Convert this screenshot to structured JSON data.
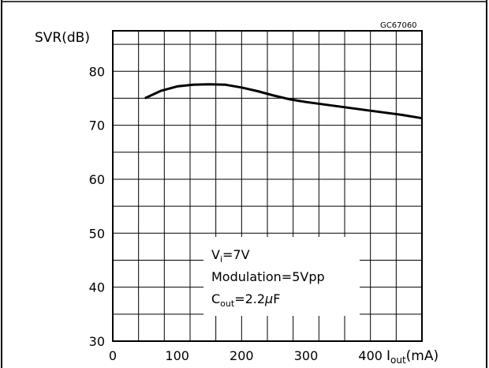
{
  "chart_data": {
    "type": "line",
    "figure_id": "GC67060",
    "ylabel": "SVR(dB)",
    "xlabel": {
      "main": "I",
      "sub": "out",
      "unit": "(mA)"
    },
    "xlim": [
      0,
      480
    ],
    "ylim": [
      30,
      87.5
    ],
    "x_ticks": [
      0,
      100,
      200,
      300,
      400
    ],
    "y_ticks": [
      30,
      40,
      50,
      60,
      70,
      80
    ],
    "x_grid_step": 40,
    "y_grid_step": 5,
    "grid": true,
    "series": [
      {
        "x": [
          50,
          75,
          100,
          125,
          150,
          175,
          200,
          225,
          250,
          275,
          300,
          350,
          400,
          450,
          480
        ],
        "y": [
          75.0,
          76.4,
          77.2,
          77.5,
          77.6,
          77.5,
          77.0,
          76.3,
          75.5,
          74.8,
          74.3,
          73.5,
          72.7,
          71.9,
          71.3
        ]
      }
    ],
    "annotation": {
      "line1": {
        "main": "V",
        "sub": "i",
        "rest": "=7V"
      },
      "line2": "Modulation=5Vpp",
      "line3": {
        "main": "C",
        "sub": "out",
        "rest": "=2.2",
        "mu": "μ",
        "unit": "F"
      }
    }
  }
}
